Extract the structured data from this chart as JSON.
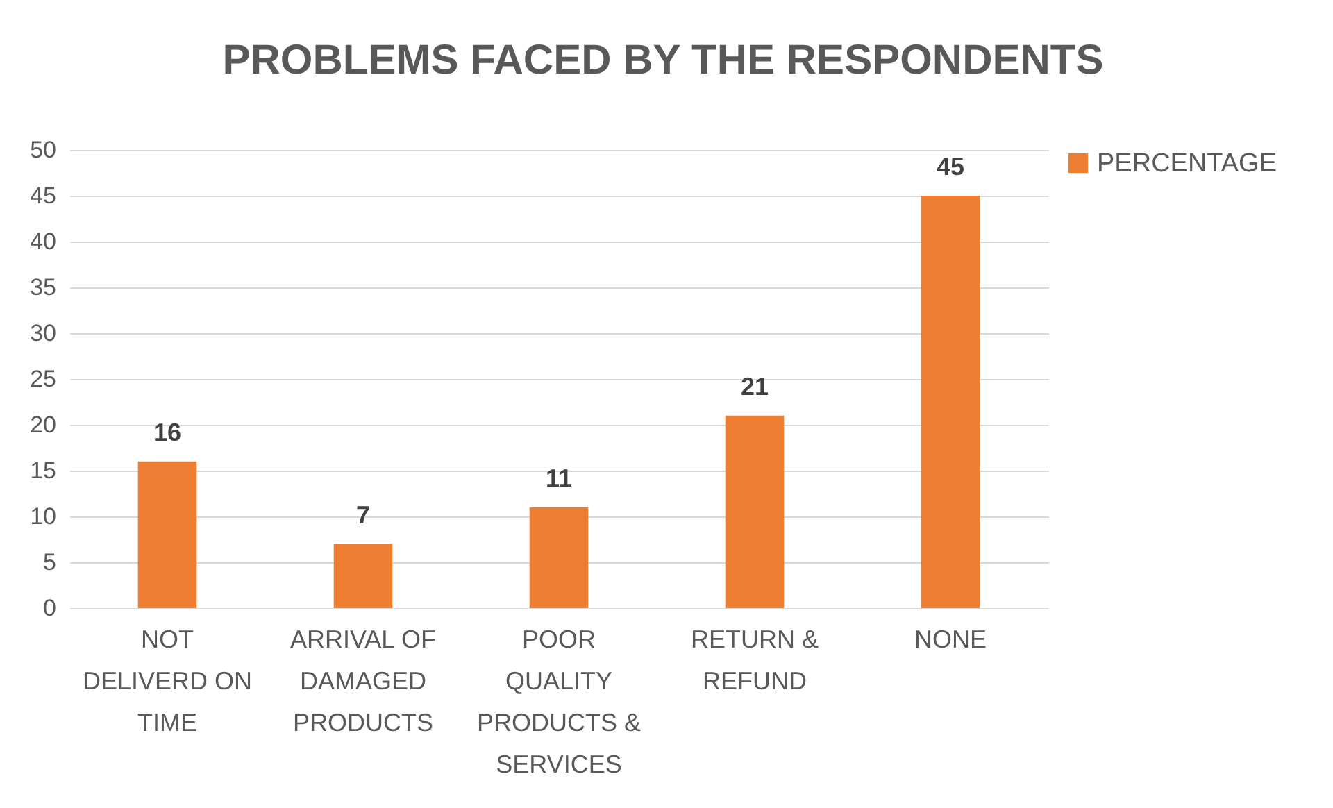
{
  "chart_data": {
    "type": "bar",
    "title": "PROBLEMS FACED BY THE RESPONDENTS",
    "categories": [
      "NOT DELIVERD ON TIME",
      "ARRIVAL OF DAMAGED PRODUCTS",
      "POOR QUALITY PRODUCTS & SERVICES",
      "RETURN & REFUND",
      "NONE"
    ],
    "series": [
      {
        "name": "PERCENTAGE",
        "color": "#ed7d31",
        "values": [
          16,
          7,
          11,
          21,
          45
        ]
      }
    ],
    "ylim": [
      0,
      50
    ],
    "yticks": [
      0,
      5,
      10,
      15,
      20,
      25,
      30,
      35,
      40,
      45,
      50
    ],
    "grid": "y",
    "legend": "right",
    "data_labels": true
  }
}
